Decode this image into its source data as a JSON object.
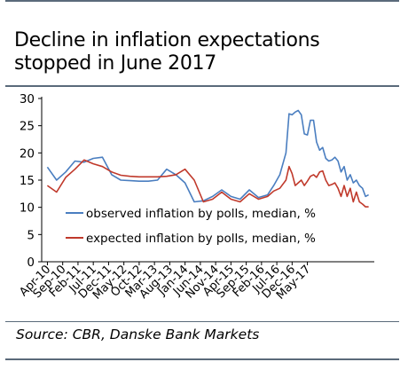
{
  "title": "Decline in inflation expectations stopped in June 2017",
  "source": "Source: CBR, Danske Bank Markets",
  "chart_data": {
    "type": "line",
    "title": "Decline in inflation expectations stopped in June 2017",
    "xlabel": "",
    "ylabel": "",
    "ylim": [
      0,
      30
    ],
    "yticks": [
      0,
      5,
      10,
      15,
      20,
      25,
      30
    ],
    "grid": false,
    "legend_position": "bottom-left",
    "x_tick_labels": [
      "Apr-10",
      "Sep-10",
      "Feb-11",
      "Jul-11",
      "Dec-11",
      "May-12",
      "Oct-12",
      "Mar-13",
      "Aug-13",
      "Jan-14",
      "Jun-14",
      "Nov-14",
      "Apr-15",
      "Sep-15",
      "Feb-16",
      "Jul-16",
      "Dec-16",
      "May-17"
    ],
    "series": [
      {
        "name": "observed inflation by polls, median, %",
        "color": "#4a7ec0",
        "points": [
          [
            "Apr-10",
            17.4
          ],
          [
            "Jul-10",
            15.0
          ],
          [
            "Oct-10",
            16.5
          ],
          [
            "Jan-11",
            18.5
          ],
          [
            "Apr-11",
            18.3
          ],
          [
            "Jul-11",
            19.0
          ],
          [
            "Oct-11",
            19.2
          ],
          [
            "Jan-12",
            16.0
          ],
          [
            "Apr-12",
            15.0
          ],
          [
            "Jul-12",
            14.9
          ],
          [
            "Oct-12",
            14.8
          ],
          [
            "Jan-13",
            14.8
          ],
          [
            "Apr-13",
            15.0
          ],
          [
            "Jul-13",
            17.0
          ],
          [
            "Oct-13",
            16.0
          ],
          [
            "Jan-14",
            14.5
          ],
          [
            "Apr-14",
            11.0
          ],
          [
            "Jul-14",
            11.2
          ],
          [
            "Oct-14",
            12.0
          ],
          [
            "Jan-15",
            13.2
          ],
          [
            "Apr-15",
            12.0
          ],
          [
            "Jul-15",
            11.5
          ],
          [
            "Oct-15",
            13.2
          ],
          [
            "Jan-16",
            11.8
          ],
          [
            "Apr-16",
            12.3
          ],
          [
            "Jun-16",
            14.0
          ],
          [
            "Aug-16",
            16.0
          ],
          [
            "Oct-16",
            20.0
          ],
          [
            "Nov-16",
            27.2
          ],
          [
            "Dec-16",
            27.0
          ],
          [
            "Jan-17",
            27.5
          ],
          [
            "Feb-17",
            27.8
          ],
          [
            "Mar-17",
            27.0
          ],
          [
            "Apr-17",
            23.5
          ],
          [
            "May-17",
            23.3
          ],
          [
            "Jun-17",
            26.0
          ],
          [
            "Jul-17",
            26.0
          ],
          [
            "Aug-17",
            22.0
          ],
          [
            "Sep-17",
            20.5
          ],
          [
            "Oct-17",
            21.0
          ],
          [
            "Nov-17",
            19.0
          ],
          [
            "Dec-17",
            18.5
          ],
          [
            "Jan-18",
            18.7
          ],
          [
            "Feb-18",
            19.2
          ],
          [
            "Mar-18",
            18.5
          ],
          [
            "Apr-18",
            16.5
          ],
          [
            "May-18",
            17.5
          ],
          [
            "Jun-18",
            15.0
          ],
          [
            "Jul-18",
            16.0
          ],
          [
            "Aug-18",
            14.5
          ],
          [
            "Sep-18",
            15.0
          ],
          [
            "Oct-18",
            14.0
          ],
          [
            "Nov-18",
            13.5
          ],
          [
            "Dec-18",
            12.0
          ],
          [
            "Jan-19",
            12.3
          ]
        ]
      },
      {
        "name": "expected inflation by polls, median, %",
        "color": "#c0392b",
        "points": [
          [
            "Apr-10",
            14.0
          ],
          [
            "Jul-10",
            12.8
          ],
          [
            "Oct-10",
            15.5
          ],
          [
            "Jan-11",
            17.0
          ],
          [
            "Apr-11",
            18.7
          ],
          [
            "Jul-11",
            18.0
          ],
          [
            "Oct-11",
            17.5
          ],
          [
            "Jan-12",
            16.5
          ],
          [
            "Apr-12",
            15.9
          ],
          [
            "Jul-12",
            15.7
          ],
          [
            "Oct-12",
            15.6
          ],
          [
            "Jan-13",
            15.6
          ],
          [
            "Apr-13",
            15.6
          ],
          [
            "Jul-13",
            15.7
          ],
          [
            "Oct-13",
            16.0
          ],
          [
            "Jan-14",
            17.0
          ],
          [
            "Apr-14",
            15.0
          ],
          [
            "Jul-14",
            11.0
          ],
          [
            "Oct-14",
            11.5
          ],
          [
            "Jan-15",
            12.8
          ],
          [
            "Apr-15",
            11.5
          ],
          [
            "Jul-15",
            11.0
          ],
          [
            "Oct-15",
            12.5
          ],
          [
            "Jan-16",
            11.5
          ],
          [
            "Apr-16",
            12.0
          ],
          [
            "Jun-16",
            13.0
          ],
          [
            "Aug-16",
            13.5
          ],
          [
            "Oct-16",
            15.0
          ],
          [
            "Nov-16",
            17.5
          ],
          [
            "Dec-16",
            16.2
          ],
          [
            "Jan-17",
            14.0
          ],
          [
            "Feb-17",
            14.5
          ],
          [
            "Mar-17",
            15.0
          ],
          [
            "Apr-17",
            14.0
          ],
          [
            "May-17",
            14.8
          ],
          [
            "Jun-17",
            15.7
          ],
          [
            "Jul-17",
            16.0
          ],
          [
            "Aug-17",
            15.5
          ],
          [
            "Sep-17",
            16.5
          ],
          [
            "Oct-17",
            16.7
          ],
          [
            "Nov-17",
            15.0
          ],
          [
            "Dec-17",
            14.0
          ],
          [
            "Jan-18",
            14.2
          ],
          [
            "Feb-18",
            14.5
          ],
          [
            "Mar-18",
            13.5
          ],
          [
            "Apr-18",
            12.0
          ],
          [
            "May-18",
            14.0
          ],
          [
            "Jun-18",
            12.0
          ],
          [
            "Jul-18",
            13.5
          ],
          [
            "Aug-18",
            11.0
          ],
          [
            "Sep-18",
            12.8
          ],
          [
            "Oct-18",
            11.0
          ],
          [
            "Nov-18",
            10.6
          ],
          [
            "Dec-18",
            10.1
          ],
          [
            "Jan-19",
            10.1
          ]
        ]
      }
    ]
  }
}
